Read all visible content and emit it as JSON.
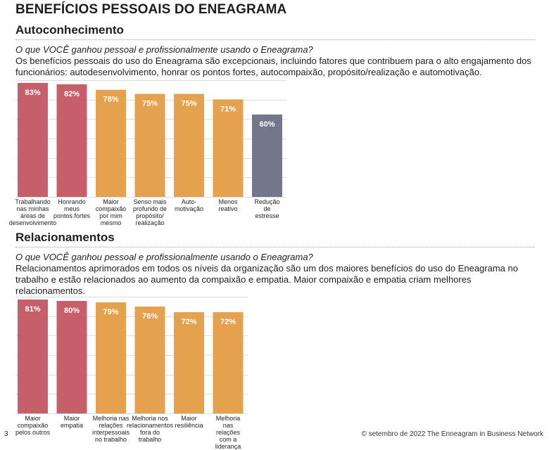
{
  "page": {
    "title": "BENEFÍCIOS PESSOAIS DO ENEAGRAMA",
    "page_number": "3",
    "footer": "© setembro de 2022  The Enneagram in Business Network"
  },
  "sections": [
    {
      "heading": "Autoconhecimento",
      "question": "O que VOCÊ ganhou pessoal e profissionalmente usando o Eneagrama?",
      "description": "Os benefícios pessoais do uso do Eneagrama são excepcionais, incluindo fatores que contribuem para o alto engajamento dos funcionários: autodesenvolvimento, honrar os pontos fortes, autocompaixão, propósito/realização e automotivação."
    },
    {
      "heading": "Relacionamentos",
      "question": "O que VOCÊ ganhou pessoal e profissionalmente usando o Eneagrama?",
      "description": "Relacionamentos aprimorados em todos os níveis da organização são um dos maiores benefícios do uso do Eneagrama no trabalho e estão relacionados ao aumento da compaixão e empatia. Maior compaixão e empatia criam melhores relacionamentos."
    }
  ],
  "colors": {
    "red": "#c65f6a",
    "orange": "#e4a24f",
    "gray": "#74768c",
    "label": "#ffffff",
    "grid": "#dcdcdc"
  },
  "chart_data": [
    {
      "type": "bar",
      "title": "",
      "categories": [
        "Trabalhando nas minhas áreas de desenvolvimento",
        "Honrando meus pontos fortes",
        "Maior compaixão por mim mesmo",
        "Senso mais profundo de propósito/ realização",
        "Auto- motivação",
        "Menos reativo",
        "Redução de estresse"
      ],
      "category_lines": [
        [
          "Trabalhando",
          "nas minhas",
          "áreas de",
          "desenvolvimento"
        ],
        [
          "Honrando",
          "meus",
          "pontos fortes"
        ],
        [
          "Maior",
          "compaixão",
          "por mim",
          "mesmo"
        ],
        [
          "Senso mais",
          "profundo de",
          "propósito/",
          "realização"
        ],
        [
          "Auto-",
          "motivação"
        ],
        [
          "Menos",
          "reativo"
        ],
        [
          "Redução",
          "de estresse"
        ]
      ],
      "values": [
        83,
        82,
        78,
        75,
        75,
        71,
        60
      ],
      "data_labels": [
        "83%",
        "82%",
        "78%",
        "75%",
        "75%",
        "71%",
        "60%"
      ],
      "bar_colors": [
        "red",
        "red",
        "orange",
        "orange",
        "orange",
        "orange",
        "gray"
      ],
      "ylim": [
        0,
        85
      ],
      "grid": true,
      "xlabel": "",
      "ylabel": ""
    },
    {
      "type": "bar",
      "title": "",
      "categories": [
        "Maior compaixão pelos outros",
        "Maior empatia",
        "Melhoria nas relações interpessoais no trabalho",
        "Melhoria nos relacionamentos fora do trabalho",
        "Maior resiliência",
        "Melhoria nas relações com a liderança"
      ],
      "category_lines": [
        [
          "Maior",
          "compaixão",
          "pelos outros"
        ],
        [
          "Maior",
          "empatia"
        ],
        [
          "Melhoria nas",
          "relações",
          "interpessoais",
          "no trabalho"
        ],
        [
          "Melhoria nos",
          "relacionamentos",
          "fora do",
          "trabalho"
        ],
        [
          "Maior",
          "resiliência"
        ],
        [
          "Melhoria",
          "nas relações",
          "com a liderança"
        ]
      ],
      "values": [
        81,
        80,
        79,
        76,
        72,
        72
      ],
      "data_labels": [
        "81%",
        "80%",
        "79%",
        "76%",
        "72%",
        "72%"
      ],
      "bar_colors": [
        "red",
        "red",
        "orange",
        "orange",
        "orange",
        "orange"
      ],
      "ylim": [
        0,
        83
      ],
      "grid": true,
      "xlabel": "",
      "ylabel": ""
    }
  ]
}
